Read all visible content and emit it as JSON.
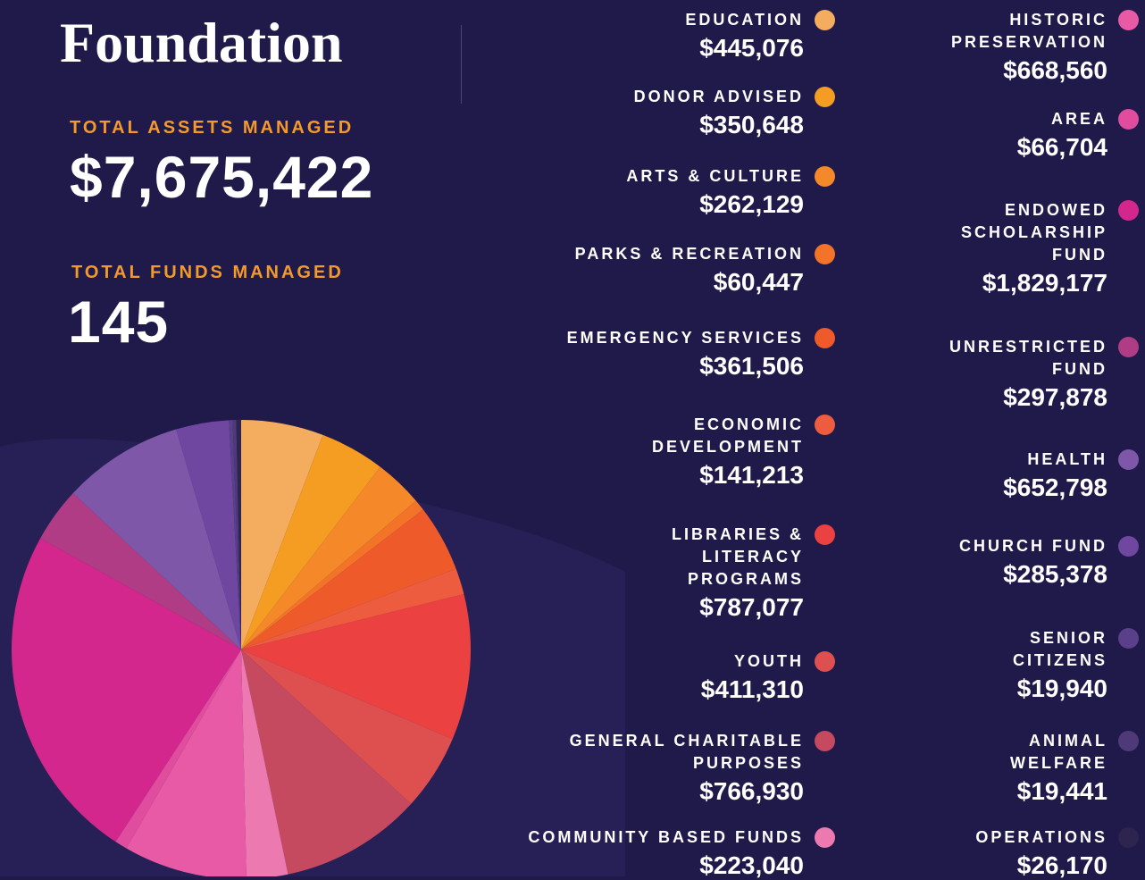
{
  "header": {
    "title": "Foundation"
  },
  "summary": {
    "assets_label": "TOTAL ASSETS MANAGED",
    "assets": "$7,675,422",
    "funds_label": "TOTAL FUNDS MANAGED",
    "funds": "145"
  },
  "chart_data": {
    "type": "pie",
    "categories": [
      "EDUCATION",
      "DONOR ADVISED",
      "ARTS & CULTURE",
      "PARKS & RECREATION",
      "EMERGENCY SERVICES",
      "ECONOMIC DEVELOPMENT",
      "LIBRARIES & LITERACY PROGRAMS",
      "YOUTH",
      "GENERAL CHARITABLE PURPOSES",
      "COMMUNITY BASED FUNDS",
      "HISTORIC PRESERVATION",
      "AREA",
      "ENDOWED SCHOLARSHIP FUND",
      "UNRESTRICTED FUND",
      "HEALTH",
      "CHURCH FUND",
      "SENIOR CITIZENS",
      "ANIMAL WELFARE",
      "OPERATIONS"
    ],
    "values": [
      445076,
      350648,
      262129,
      60447,
      361506,
      141213,
      787077,
      411310,
      766930,
      223040,
      668560,
      66704,
      1829177,
      297878,
      652798,
      285378,
      19940,
      19441,
      26170
    ],
    "value_labels": [
      "$445,076",
      "$350,648",
      "$262,129",
      "$60,447",
      "$361,506",
      "$141,213",
      "$787,077",
      "$411,310",
      "$766,930",
      "$223,040",
      "$668,560",
      "$66,704",
      "$1,829,177",
      "$297,878",
      "$652,798",
      "$285,378",
      "$19,940",
      "$19,441",
      "$26,170"
    ],
    "colors": [
      "#f4ad5e",
      "#f59c22",
      "#f5892a",
      "#f37428",
      "#ef5a2a",
      "#ee5c40",
      "#ec4141",
      "#de5050",
      "#c54a60",
      "#ec7ab0",
      "#e85aa6",
      "#e04d9e",
      "#d4278e",
      "#b03c85",
      "#7e57a8",
      "#6f47a0",
      "#5a3f8a",
      "#4e3a78",
      "#2e2450"
    ]
  }
}
